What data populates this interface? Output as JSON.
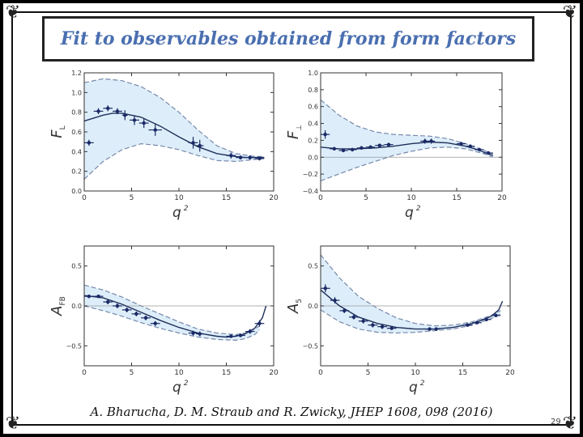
{
  "slide": {
    "title": "Fit to observables obtained from form factors",
    "citation": "A. Bharucha, D. M. Straub and R. Zwicky, JHEP 1608, 098 (2016)",
    "page_number": "29"
  },
  "colors": {
    "band": "#ddeefa",
    "curve": "#1f2f5a",
    "points": "#1b2a66",
    "dashed": "#7788aa"
  },
  "chart_data": [
    {
      "type": "line",
      "panel": "top-left",
      "ylabel": "F",
      "ylabel_sub": "L",
      "xlabel": "q",
      "xlabel_sup": "2",
      "xlim": [
        0,
        20
      ],
      "ylim": [
        0,
        1.2
      ],
      "xticks": [
        "0",
        "5",
        "10",
        "15",
        "20"
      ],
      "yticks": [
        "0.0",
        "0.2",
        "0.4",
        "0.6",
        "0.8",
        "1.0",
        "1.2"
      ],
      "ytick_values": [
        0,
        0.2,
        0.4,
        0.6,
        0.8,
        1.0,
        1.2
      ],
      "zero_line": false,
      "central": {
        "x": [
          0,
          2,
          3,
          4,
          6,
          8,
          10,
          12,
          14,
          16,
          17,
          18,
          19
        ],
        "y": [
          0.71,
          0.77,
          0.79,
          0.79,
          0.75,
          0.66,
          0.55,
          0.45,
          0.38,
          0.35,
          0.34,
          0.34,
          0.34
        ]
      },
      "band_upper": {
        "x": [
          0,
          2,
          4,
          6,
          8,
          10,
          12,
          14,
          16,
          18,
          19
        ],
        "y": [
          1.1,
          1.14,
          1.12,
          1.06,
          0.95,
          0.8,
          0.62,
          0.46,
          0.38,
          0.35,
          0.35
        ]
      },
      "band_lower": {
        "x": [
          0,
          2,
          4,
          6,
          8,
          10,
          12,
          14,
          16,
          18,
          19
        ],
        "y": [
          0.12,
          0.3,
          0.42,
          0.48,
          0.46,
          0.42,
          0.36,
          0.31,
          0.3,
          0.32,
          0.33
        ]
      },
      "points": [
        {
          "x": 0.5,
          "y": 0.49,
          "xerr": 0.5,
          "yerr": 0.03
        },
        {
          "x": 1.5,
          "y": 0.81,
          "xerr": 0.5,
          "yerr": 0.03
        },
        {
          "x": 2.5,
          "y": 0.84,
          "xerr": 0.5,
          "yerr": 0.03
        },
        {
          "x": 3.5,
          "y": 0.81,
          "xerr": 0.5,
          "yerr": 0.03
        },
        {
          "x": 4.3,
          "y": 0.77,
          "xerr": 0.3,
          "yerr": 0.05
        },
        {
          "x": 5.3,
          "y": 0.72,
          "xerr": 0.5,
          "yerr": 0.05
        },
        {
          "x": 6.3,
          "y": 0.69,
          "xerr": 0.5,
          "yerr": 0.05
        },
        {
          "x": 7.5,
          "y": 0.62,
          "xerr": 0.7,
          "yerr": 0.06
        },
        {
          "x": 11.5,
          "y": 0.49,
          "xerr": 0.5,
          "yerr": 0.06
        },
        {
          "x": 12.2,
          "y": 0.46,
          "xerr": 0.4,
          "yerr": 0.06
        },
        {
          "x": 15.5,
          "y": 0.36,
          "xerr": 0.5,
          "yerr": 0.03
        },
        {
          "x": 16.5,
          "y": 0.34,
          "xerr": 0.5,
          "yerr": 0.02
        },
        {
          "x": 17.5,
          "y": 0.34,
          "xerr": 0.5,
          "yerr": 0.02
        },
        {
          "x": 18.5,
          "y": 0.33,
          "xerr": 0.5,
          "yerr": 0.02
        }
      ]
    },
    {
      "type": "line",
      "panel": "top-right",
      "ylabel": "F",
      "ylabel_sub": "⊥",
      "xlabel": "q",
      "xlabel_sup": "2",
      "xlim": [
        0,
        20
      ],
      "ylim": [
        -0.4,
        1.0
      ],
      "xticks": [
        "0",
        "5",
        "10",
        "15",
        "20"
      ],
      "yticks": [
        "−0.4",
        "−0.2",
        "0.0",
        "0.2",
        "0.4",
        "0.6",
        "0.8",
        "1.0"
      ],
      "ytick_values": [
        -0.4,
        -0.2,
        0,
        0.2,
        0.4,
        0.6,
        0.8,
        1.0
      ],
      "zero_line": true,
      "central": {
        "x": [
          0,
          2,
          4,
          6,
          8,
          10,
          12,
          14,
          16,
          17,
          18,
          19
        ],
        "y": [
          0.12,
          0.1,
          0.1,
          0.11,
          0.13,
          0.16,
          0.18,
          0.17,
          0.13,
          0.1,
          0.06,
          0.02
        ]
      },
      "band_upper": {
        "x": [
          0,
          2,
          4,
          6,
          8,
          10,
          12,
          14,
          16,
          18,
          19
        ],
        "y": [
          0.68,
          0.5,
          0.37,
          0.3,
          0.27,
          0.26,
          0.25,
          0.22,
          0.16,
          0.08,
          0.04
        ]
      },
      "band_lower": {
        "x": [
          0,
          2,
          4,
          6,
          8,
          10,
          12,
          14,
          16,
          18,
          19
        ],
        "y": [
          -0.28,
          -0.2,
          -0.12,
          -0.05,
          0.02,
          0.07,
          0.11,
          0.12,
          0.1,
          0.04,
          0.0
        ]
      },
      "points": [
        {
          "x": 0.5,
          "y": 0.27,
          "xerr": 0.5,
          "yerr": 0.05
        },
        {
          "x": 1.5,
          "y": 0.1,
          "xerr": 0.5,
          "yerr": 0.02
        },
        {
          "x": 2.5,
          "y": 0.08,
          "xerr": 0.5,
          "yerr": 0.02
        },
        {
          "x": 3.5,
          "y": 0.09,
          "xerr": 0.5,
          "yerr": 0.02
        },
        {
          "x": 4.5,
          "y": 0.11,
          "xerr": 0.5,
          "yerr": 0.02
        },
        {
          "x": 5.5,
          "y": 0.12,
          "xerr": 0.5,
          "yerr": 0.02
        },
        {
          "x": 6.5,
          "y": 0.14,
          "xerr": 0.5,
          "yerr": 0.02
        },
        {
          "x": 7.5,
          "y": 0.15,
          "xerr": 0.5,
          "yerr": 0.02
        },
        {
          "x": 11.5,
          "y": 0.19,
          "xerr": 0.5,
          "yerr": 0.03
        },
        {
          "x": 12.2,
          "y": 0.19,
          "xerr": 0.4,
          "yerr": 0.03
        },
        {
          "x": 15.5,
          "y": 0.16,
          "xerr": 0.5,
          "yerr": 0.02
        },
        {
          "x": 16.5,
          "y": 0.13,
          "xerr": 0.5,
          "yerr": 0.02
        },
        {
          "x": 17.5,
          "y": 0.09,
          "xerr": 0.5,
          "yerr": 0.02
        },
        {
          "x": 18.5,
          "y": 0.05,
          "xerr": 0.5,
          "yerr": 0.02
        }
      ]
    },
    {
      "type": "line",
      "panel": "bottom-left",
      "ylabel": "A",
      "ylabel_sub": "FB",
      "xlabel": "q",
      "xlabel_sup": "2",
      "xlim": [
        0,
        20
      ],
      "ylim": [
        -0.75,
        0.75
      ],
      "xticks": [
        "0",
        "5",
        "10",
        "15",
        "20"
      ],
      "yticks": [
        "−0.5",
        "0.0",
        "0.5"
      ],
      "ytick_values": [
        -0.5,
        0,
        0.5
      ],
      "zero_line": true,
      "central": {
        "x": [
          0,
          2,
          4,
          6,
          8,
          10,
          12,
          14,
          15,
          16,
          17,
          18,
          18.8,
          19.2
        ],
        "y": [
          0.13,
          0.1,
          0.02,
          -0.08,
          -0.18,
          -0.27,
          -0.34,
          -0.38,
          -0.39,
          -0.38,
          -0.35,
          -0.28,
          -0.15,
          0.0
        ]
      },
      "band_upper": {
        "x": [
          0,
          2,
          4,
          6,
          8,
          10,
          12,
          14,
          16,
          17,
          18,
          18.5
        ],
        "y": [
          0.26,
          0.2,
          0.11,
          0.0,
          -0.1,
          -0.2,
          -0.29,
          -0.34,
          -0.36,
          -0.34,
          -0.29,
          -0.25
        ]
      },
      "band_lower": {
        "x": [
          0,
          2,
          4,
          6,
          8,
          10,
          12,
          14,
          16,
          17,
          18,
          18.5
        ],
        "y": [
          0.0,
          -0.06,
          -0.13,
          -0.21,
          -0.28,
          -0.34,
          -0.39,
          -0.42,
          -0.43,
          -0.41,
          -0.36,
          -0.3
        ]
      },
      "points": [
        {
          "x": 0.5,
          "y": 0.12,
          "xerr": 0.5,
          "yerr": 0.02
        },
        {
          "x": 1.5,
          "y": 0.12,
          "xerr": 0.5,
          "yerr": 0.02
        },
        {
          "x": 2.5,
          "y": 0.05,
          "xerr": 0.5,
          "yerr": 0.03
        },
        {
          "x": 3.5,
          "y": 0.0,
          "xerr": 0.5,
          "yerr": 0.03
        },
        {
          "x": 4.5,
          "y": -0.05,
          "xerr": 0.5,
          "yerr": 0.03
        },
        {
          "x": 5.5,
          "y": -0.1,
          "xerr": 0.5,
          "yerr": 0.03
        },
        {
          "x": 6.5,
          "y": -0.15,
          "xerr": 0.5,
          "yerr": 0.03
        },
        {
          "x": 7.5,
          "y": -0.22,
          "xerr": 0.5,
          "yerr": 0.03
        },
        {
          "x": 11.5,
          "y": -0.34,
          "xerr": 0.5,
          "yerr": 0.03
        },
        {
          "x": 12.2,
          "y": -0.35,
          "xerr": 0.4,
          "yerr": 0.03
        },
        {
          "x": 15.5,
          "y": -0.38,
          "xerr": 0.5,
          "yerr": 0.02
        },
        {
          "x": 16.5,
          "y": -0.37,
          "xerr": 0.5,
          "yerr": 0.02
        },
        {
          "x": 17.5,
          "y": -0.32,
          "xerr": 0.5,
          "yerr": 0.03
        },
        {
          "x": 18.5,
          "y": -0.22,
          "xerr": 0.5,
          "yerr": 0.04
        }
      ]
    },
    {
      "type": "line",
      "panel": "bottom-right",
      "ylabel": "A",
      "ylabel_sub": "5",
      "xlabel": "q",
      "xlabel_sup": "2",
      "xlim": [
        0,
        20
      ],
      "ylim": [
        -0.75,
        0.75
      ],
      "xticks": [
        "0",
        "5",
        "10",
        "15",
        "20"
      ],
      "yticks": [
        "−0.5",
        "0.0",
        "0.5"
      ],
      "ytick_values": [
        -0.5,
        0,
        0.5
      ],
      "zero_line": true,
      "central": {
        "x": [
          0,
          2,
          4,
          6,
          8,
          10,
          12,
          14,
          16,
          17,
          18,
          18.8,
          19.2
        ],
        "y": [
          0.2,
          0.0,
          -0.14,
          -0.22,
          -0.27,
          -0.29,
          -0.29,
          -0.27,
          -0.22,
          -0.18,
          -0.13,
          -0.05,
          0.06
        ]
      },
      "band_upper": {
        "x": [
          0,
          2,
          4,
          6,
          8,
          10,
          12,
          14,
          16,
          18,
          19
        ],
        "y": [
          0.64,
          0.35,
          0.12,
          -0.03,
          -0.15,
          -0.22,
          -0.25,
          -0.24,
          -0.2,
          -0.12,
          -0.06
        ]
      },
      "band_lower": {
        "x": [
          0,
          2,
          4,
          6,
          8,
          10,
          12,
          14,
          16,
          18,
          19
        ],
        "y": [
          -0.05,
          -0.2,
          -0.29,
          -0.33,
          -0.34,
          -0.33,
          -0.31,
          -0.29,
          -0.24,
          -0.16,
          -0.1
        ]
      },
      "points": [
        {
          "x": 0.5,
          "y": 0.22,
          "xerr": 0.5,
          "yerr": 0.05
        },
        {
          "x": 1.5,
          "y": 0.07,
          "xerr": 0.5,
          "yerr": 0.04
        },
        {
          "x": 2.5,
          "y": -0.06,
          "xerr": 0.5,
          "yerr": 0.03
        },
        {
          "x": 3.5,
          "y": -0.14,
          "xerr": 0.5,
          "yerr": 0.03
        },
        {
          "x": 4.5,
          "y": -0.19,
          "xerr": 0.5,
          "yerr": 0.03
        },
        {
          "x": 5.5,
          "y": -0.24,
          "xerr": 0.5,
          "yerr": 0.03
        },
        {
          "x": 6.5,
          "y": -0.26,
          "xerr": 0.5,
          "yerr": 0.03
        },
        {
          "x": 7.5,
          "y": -0.28,
          "xerr": 0.5,
          "yerr": 0.02
        },
        {
          "x": 11.5,
          "y": -0.29,
          "xerr": 0.5,
          "yerr": 0.02
        },
        {
          "x": 12.2,
          "y": -0.29,
          "xerr": 0.4,
          "yerr": 0.02
        },
        {
          "x": 15.5,
          "y": -0.24,
          "xerr": 0.5,
          "yerr": 0.02
        },
        {
          "x": 16.5,
          "y": -0.21,
          "xerr": 0.5,
          "yerr": 0.02
        },
        {
          "x": 17.5,
          "y": -0.17,
          "xerr": 0.5,
          "yerr": 0.02
        },
        {
          "x": 18.5,
          "y": -0.12,
          "xerr": 0.5,
          "yerr": 0.02
        }
      ]
    }
  ]
}
